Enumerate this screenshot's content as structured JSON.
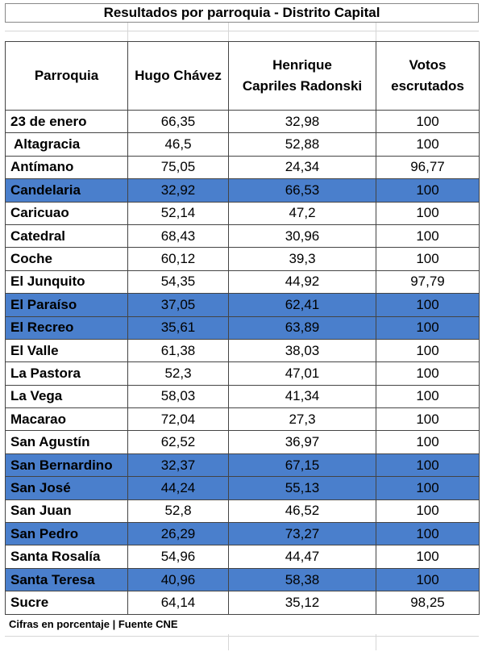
{
  "title": "Resultados por parroquia - Distrito Capital",
  "headers": {
    "parroquia": "Parroquia",
    "chavez": "Hugo Chávez",
    "capriles_line1": "Henrique",
    "capriles_line2": "Capriles Radonski",
    "votos_line1": "Votos",
    "votos_line2": "escrutados"
  },
  "highlight_color": "#4a7fcc",
  "rows": [
    {
      "parroquia": "23 de enero",
      "chavez": "66,35",
      "capriles": "32,98",
      "votos": "100",
      "highlight": false
    },
    {
      "parroquia": "Altagracia",
      "chavez": "46,5",
      "capriles": "52,88",
      "votos": "100",
      "highlight": false
    },
    {
      "parroquia": "Antímano",
      "chavez": "75,05",
      "capriles": "24,34",
      "votos": "96,77",
      "highlight": false
    },
    {
      "parroquia": "Candelaria",
      "chavez": "32,92",
      "capriles": "66,53",
      "votos": "100",
      "highlight": true
    },
    {
      "parroquia": "Caricuao",
      "chavez": "52,14",
      "capriles": "47,2",
      "votos": "100",
      "highlight": false
    },
    {
      "parroquia": "Catedral",
      "chavez": "68,43",
      "capriles": "30,96",
      "votos": "100",
      "highlight": false
    },
    {
      "parroquia": "Coche",
      "chavez": "60,12",
      "capriles": "39,3",
      "votos": "100",
      "highlight": false
    },
    {
      "parroquia": "El Junquito",
      "chavez": "54,35",
      "capriles": "44,92",
      "votos": "97,79",
      "highlight": false
    },
    {
      "parroquia": "El Paraíso",
      "chavez": "37,05",
      "capriles": "62,41",
      "votos": "100",
      "highlight": true
    },
    {
      "parroquia": "El Recreo",
      "chavez": "35,61",
      "capriles": "63,89",
      "votos": "100",
      "highlight": true
    },
    {
      "parroquia": "El Valle",
      "chavez": "61,38",
      "capriles": "38,03",
      "votos": "100",
      "highlight": false
    },
    {
      "parroquia": "La Pastora",
      "chavez": "52,3",
      "capriles": "47,01",
      "votos": "100",
      "highlight": false
    },
    {
      "parroquia": "La Vega",
      "chavez": "58,03",
      "capriles": "41,34",
      "votos": "100",
      "highlight": false
    },
    {
      "parroquia": "Macarao",
      "chavez": "72,04",
      "capriles": "27,3",
      "votos": "100",
      "highlight": false
    },
    {
      "parroquia": "San Agustín",
      "chavez": "62,52",
      "capriles": "36,97",
      "votos": "100",
      "highlight": false
    },
    {
      "parroquia": "San Bernardino",
      "chavez": "32,37",
      "capriles": "67,15",
      "votos": "100",
      "highlight": true
    },
    {
      "parroquia": "San José",
      "chavez": "44,24",
      "capriles": "55,13",
      "votos": "100",
      "highlight": true
    },
    {
      "parroquia": "San Juan",
      "chavez": "52,8",
      "capriles": "46,52",
      "votos": "100",
      "highlight": false
    },
    {
      "parroquia": "San Pedro",
      "chavez": "26,29",
      "capriles": "73,27",
      "votos": "100",
      "highlight": true
    },
    {
      "parroquia": "Santa Rosalía",
      "chavez": "54,96",
      "capriles": "44,47",
      "votos": "100",
      "highlight": false
    },
    {
      "parroquia": "Santa Teresa",
      "chavez": "40,96",
      "capriles": "58,38",
      "votos": "100",
      "highlight": true
    },
    {
      "parroquia": "Sucre",
      "chavez": "64,14",
      "capriles": "35,12",
      "votos": "98,25",
      "highlight": false
    }
  ],
  "footer": "Cifras en porcentaje | Fuente CNE"
}
